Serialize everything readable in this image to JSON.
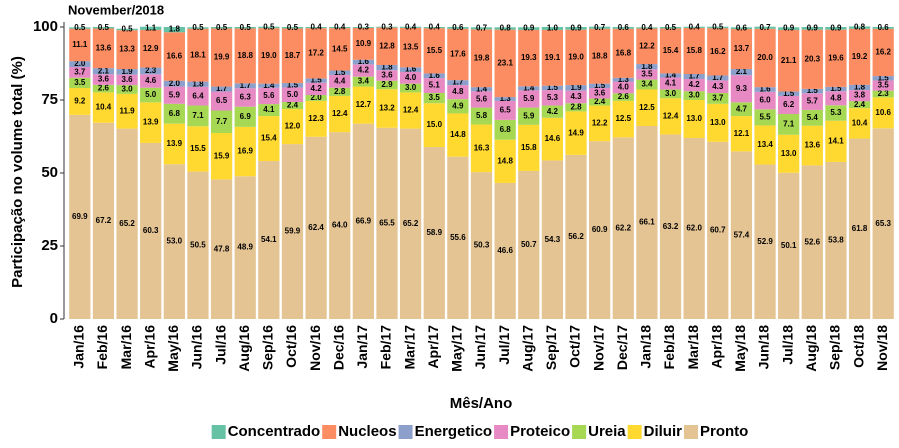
{
  "chart_data": {
    "type": "stacked_bar",
    "subtitle": "November/2018",
    "x_label": "Mês/Ano",
    "y_label": "Participação no volume total (%)",
    "ylim": [
      0,
      100
    ],
    "yticks": [
      0,
      25,
      50,
      75,
      100
    ],
    "legend_position": "bottom",
    "categories": [
      "Jan/16",
      "Feb/16",
      "Mar/16",
      "Apr/16",
      "May/16",
      "Jun/16",
      "Jul/16",
      "Aug/16",
      "Sep/16",
      "Oct/16",
      "Nov/16",
      "Dec/16",
      "Jan/17",
      "Feb/17",
      "Mar/17",
      "Apr/17",
      "May/17",
      "Jun/17",
      "Jul/17",
      "Aug/17",
      "Sep/17",
      "Oct/17",
      "Nov/17",
      "Dec/17",
      "Jan/18",
      "Feb/18",
      "Mar/18",
      "Apr/18",
      "May/18",
      "Jun/18",
      "Jul/18",
      "Aug/18",
      "Sep/18",
      "Oct/18",
      "Nov/18"
    ],
    "series": [
      {
        "name": "Concentrado",
        "color": "#66c2a5",
        "values": [
          0.5,
          0.5,
          0.5,
          1.1,
          1.8,
          0.5,
          0.5,
          0.5,
          0.5,
          0.5,
          0.4,
          0.4,
          0.3,
          0.3,
          0.4,
          0.4,
          0.6,
          0.7,
          0.8,
          0.9,
          1.0,
          0.9,
          0.7,
          0.6,
          0.4,
          0.5,
          0.4,
          0.5,
          0.6,
          0.7,
          0.9,
          0.9,
          0.9,
          0.8,
          0.6
        ],
        "value_labels": [
          "0.5",
          "0.5",
          "0.5",
          "1.1",
          "1.8",
          "0.5",
          "0.5",
          "0.5",
          "0.5",
          "0.5",
          "0.4",
          "0.4",
          "0.3",
          "0.3",
          "0.4",
          "0.4",
          "0.6",
          "0.7",
          "0.8",
          "0.9",
          "1.0",
          "0.9",
          "0.7",
          "0.6",
          "0.4",
          "0.5",
          "0.4",
          "0.5",
          "0.6",
          "0.7",
          "0.9",
          "0.9",
          "0.9",
          "0.8",
          "0.6"
        ]
      },
      {
        "name": "Nucleos",
        "color": "#fc8d62",
        "values": [
          11.1,
          13.6,
          13.3,
          12.9,
          16.6,
          18.1,
          19.9,
          18.8,
          19.0,
          18.7,
          17.2,
          14.5,
          10.9,
          12.8,
          13.5,
          15.5,
          17.6,
          19.8,
          23.1,
          19.3,
          19.1,
          19.0,
          18.8,
          16.8,
          12.2,
          15.4,
          15.8,
          16.2,
          13.7,
          20.0,
          21.1,
          20.3,
          19.6,
          19.2,
          16.2
        ],
        "value_labels": [
          "11.1",
          "13.6",
          "13.3",
          "12.9",
          "16.6",
          "18.1",
          "19.9",
          "18.8",
          "19.0",
          "18.7",
          "17.2",
          "14.5",
          "10.9",
          "12.8",
          "13.5",
          "15.5",
          "17.6",
          "19.8",
          "23.1",
          "19.3",
          "19.1",
          "19.0",
          "18.8",
          "16.8",
          "12.2",
          "15.4",
          "15.8",
          "16.2",
          "13.7",
          "20.0",
          "21.1",
          "20.3",
          "19.6",
          "19.2",
          "16.2"
        ]
      },
      {
        "name": "Energetico",
        "color": "#8da0cb",
        "values": [
          2.0,
          2.1,
          1.9,
          2.3,
          2.0,
          1.8,
          1.7,
          1.7,
          1.4,
          1.5,
          1.5,
          1.5,
          1.6,
          1.8,
          1.6,
          1.6,
          1.7,
          1.4,
          1.3,
          1.4,
          1.5,
          1.9,
          1.5,
          1.3,
          1.8,
          1.4,
          1.7,
          1.7,
          2.1,
          1.6,
          1.5,
          1.5,
          1.5,
          1.8,
          1.5
        ],
        "value_labels": [
          "2.0",
          "2.1",
          "1.9",
          "2.3",
          "2.0",
          "1.8",
          "1.7",
          "1.7",
          "1.4",
          "1.5",
          "1.5",
          "1.5",
          "1.6",
          "1.8",
          "1.6",
          "1.6",
          "1.7",
          "1.4",
          "1.3",
          "1.4",
          "1.5",
          "1.9",
          "1.5",
          "1.3",
          "1.8",
          "1.4",
          "1.7",
          "1.7",
          "2.1",
          "1.6",
          "1.5",
          "1.5",
          "1.5",
          "1.8",
          "1.5"
        ]
      },
      {
        "name": "Proteico",
        "color": "#e78ac3",
        "values": [
          3.7,
          3.6,
          3.6,
          4.6,
          5.9,
          6.4,
          6.5,
          6.3,
          5.6,
          5.0,
          4.2,
          4.4,
          4.2,
          3.6,
          4.0,
          5.1,
          4.8,
          5.6,
          6.5,
          5.9,
          5.3,
          4.3,
          3.6,
          4.0,
          3.5,
          4.1,
          4.2,
          4.3,
          9.3,
          6.0,
          6.2,
          5.7,
          4.8,
          3.8,
          3.5
        ],
        "value_labels": [
          "3.7",
          "3.6",
          "3.6",
          "4.6",
          "5.9",
          "6.4",
          "6.5",
          "6.3",
          "5.6",
          "5.0",
          "4.2",
          "4.4",
          "4.2",
          "3.6",
          "4.0",
          "5.1",
          "4.8",
          "5.6",
          "6.5",
          "5.9",
          "5.3",
          "4.3",
          "3.6",
          "4.0",
          "3.5",
          "4.1",
          "4.2",
          "4.3",
          "9.3",
          "6.0",
          "6.2",
          "5.7",
          "4.8",
          "3.8",
          "3.5"
        ]
      },
      {
        "name": "Ureia",
        "color": "#a6d854",
        "values": [
          3.5,
          2.6,
          3.0,
          5.0,
          6.8,
          7.1,
          7.7,
          6.9,
          4.1,
          2.4,
          2.0,
          2.8,
          3.4,
          2.9,
          3.0,
          3.5,
          4.9,
          5.8,
          6.8,
          5.9,
          4.2,
          2.8,
          2.4,
          2.6,
          3.4,
          3.0,
          3.0,
          3.7,
          4.7,
          5.5,
          7.1,
          5.4,
          5.3,
          2.4,
          2.3
        ],
        "value_labels": [
          "3.5",
          "2.6",
          "3.0",
          "5.0",
          "6.8",
          "7.1",
          "7.7",
          "6.9",
          "4.1",
          "2.4",
          "2.0",
          "2.8",
          "3.4",
          "2.9",
          "3.0",
          "3.5",
          "4.9",
          "5.8",
          "6.8",
          "5.9",
          "4.2",
          "2.8",
          "2.4",
          "2.6",
          "3.4",
          "3.0",
          "3.0",
          "3.7",
          "4.7",
          "5.5",
          "7.1",
          "5.4",
          "5.3",
          "2.4",
          "2.3"
        ]
      },
      {
        "name": "Diluir",
        "color": "#ffd92f",
        "values": [
          9.2,
          10.4,
          11.9,
          13.9,
          13.9,
          15.5,
          15.9,
          16.9,
          15.4,
          12.0,
          12.3,
          12.4,
          12.7,
          13.2,
          12.4,
          15.0,
          14.8,
          16.3,
          14.8,
          15.8,
          14.6,
          14.9,
          12.2,
          12.5,
          12.5,
          12.4,
          13.0,
          13.0,
          12.1,
          13.4,
          13.0,
          13.6,
          14.1,
          10.4,
          10.6
        ],
        "value_labels": [
          "9.2",
          "10.4",
          "11.9",
          "13.9",
          "13.9",
          "15.5",
          "15.9",
          "16.9",
          "15.4",
          "12.0",
          "12.3",
          "12.4",
          "12.7",
          "13.2",
          "12.4",
          "15.0",
          "14.8",
          "16.3",
          "14.8",
          "15.8",
          "14.6",
          "14.9",
          "12.2",
          "12.5",
          "12.5",
          "12.4",
          "13.0",
          "13.0",
          "12.1",
          "13.4",
          "13.0",
          "13.6",
          "14.1",
          "10.4",
          "10.6"
        ]
      },
      {
        "name": "Pronto",
        "color": "#e5c494",
        "values": [
          69.9,
          67.2,
          65.2,
          60.3,
          53.0,
          50.5,
          47.8,
          48.9,
          54.1,
          59.9,
          62.4,
          64.0,
          66.9,
          65.5,
          65.2,
          58.9,
          55.6,
          50.3,
          46.6,
          50.7,
          54.3,
          56.2,
          60.9,
          62.2,
          66.1,
          63.2,
          62.0,
          60.7,
          57.4,
          52.9,
          50.1,
          52.6,
          53.8,
          61.8,
          65.3
        ],
        "value_labels": [
          "69.9",
          "67.2",
          "65.2",
          "60.3",
          "53.0",
          "50.5",
          "47.8",
          "48.9",
          "54.1",
          "59.9",
          "62.4",
          "64.0",
          "66.9",
          "65.5",
          "65.2",
          "58.9",
          "55.6",
          "50.3",
          "46.6",
          "50.7",
          "54.3",
          "56.2",
          "60.9",
          "62.2",
          "66.1",
          "63.2",
          "62.0",
          "60.7",
          "57.4",
          "52.9",
          "50.1",
          "52.6",
          "53.8",
          "61.8",
          "65.3"
        ]
      }
    ]
  }
}
